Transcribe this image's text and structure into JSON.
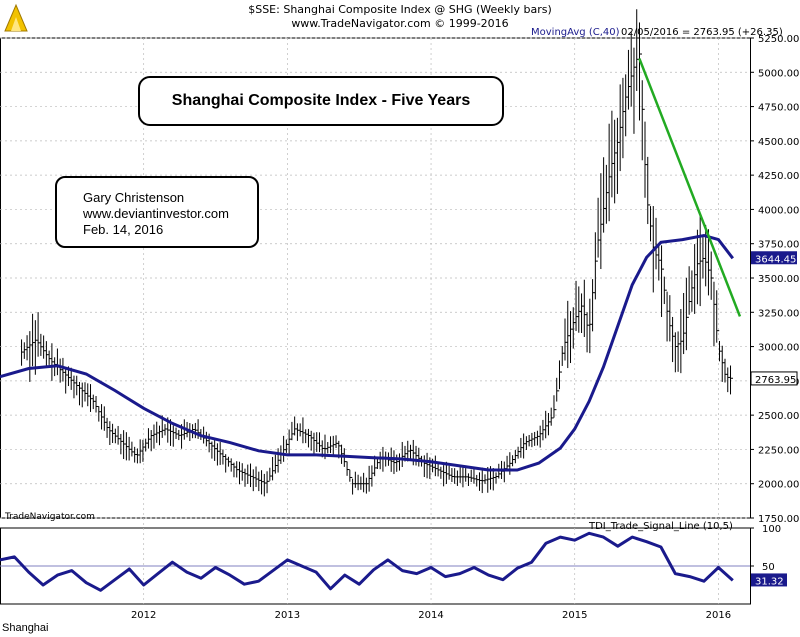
{
  "header": {
    "line1": "$SSE:  Shanghai Composite Index @ SHG  (Weekly bars)",
    "line2": "www.TradeNavigator.com © 1999-2016"
  },
  "overlay": {
    "ma_label": "MovingAvg (C,40)",
    "last_bar": "02/05/2016 = 2763.95 (+26.35)",
    "watermark": "TradeNavigator.com",
    "indicator_label": "TDI_Trade_Signal_Line (10,5)"
  },
  "annotations": {
    "title": "Shanghai Composite Index - Five Years",
    "author": "Gary Christenson",
    "website": "www.deviantinvestor.com",
    "date": "Feb. 14, 2016"
  },
  "footer": {
    "symbol": "Shanghai"
  },
  "colors": {
    "price_bars": "#000000",
    "moving_average": "#1a1a8c",
    "trendline": "#22aa22",
    "indicator": "#1a1a8c",
    "midline": "#8080c0",
    "ma_badge": "#1a1a8c"
  },
  "chart_data": [
    {
      "type": "ohlc",
      "title": "Shanghai Composite Index - Five Years",
      "ylim": [
        1750,
        5250
      ],
      "yticks": [
        "1750.00",
        "2000.00",
        "2250.00",
        "2500.00",
        "2750.00",
        "3000.00",
        "3250.00",
        "3500.00",
        "3750.00",
        "4000.00",
        "4250.00",
        "4500.00",
        "4750.00",
        "5000.00",
        "5250.00"
      ],
      "xticks": [
        "2012",
        "2013",
        "2014",
        "2015",
        "2016"
      ],
      "last_close_label": "2763.95",
      "ma_value_label": "3644.45",
      "close": {
        "x": [
          2011.15,
          2011.25,
          2011.35,
          2011.45,
          2011.55,
          2011.65,
          2011.75,
          2011.85,
          2011.95,
          2012.05,
          2012.15,
          2012.25,
          2012.35,
          2012.45,
          2012.55,
          2012.65,
          2012.75,
          2012.85,
          2012.95,
          2013.05,
          2013.15,
          2013.25,
          2013.35,
          2013.45,
          2013.55,
          2013.65,
          2013.75,
          2013.85,
          2013.95,
          2014.05,
          2014.15,
          2014.25,
          2014.35,
          2014.45,
          2014.55,
          2014.65,
          2014.75,
          2014.85,
          2014.92,
          2015.0,
          2015.05,
          2015.1,
          2015.15,
          2015.2,
          2015.25,
          2015.3,
          2015.35,
          2015.4,
          2015.45,
          2015.5,
          2015.55,
          2015.6,
          2015.65,
          2015.7,
          2015.75,
          2015.8,
          2015.85,
          2015.9,
          2015.95,
          2016.0,
          2016.05,
          2016.1
        ],
        "y": [
          2960,
          3050,
          2900,
          2800,
          2700,
          2600,
          2400,
          2300,
          2200,
          2350,
          2400,
          2350,
          2400,
          2300,
          2200,
          2100,
          2050,
          2000,
          2200,
          2400,
          2350,
          2250,
          2300,
          2000,
          2000,
          2200,
          2150,
          2250,
          2150,
          2100,
          2050,
          2050,
          2020,
          2050,
          2150,
          2300,
          2350,
          2500,
          3000,
          3200,
          3300,
          3100,
          3700,
          4000,
          4300,
          4500,
          4800,
          5000,
          5150,
          4100,
          3700,
          3600,
          3200,
          3000,
          3050,
          3350,
          3600,
          3650,
          3500,
          3000,
          2780,
          2764
        ]
      },
      "moving_average": {
        "name": "MovingAvg (C,40)",
        "x": [
          2011.0,
          2011.2,
          2011.4,
          2011.6,
          2011.8,
          2012.0,
          2012.2,
          2012.4,
          2012.6,
          2012.8,
          2013.0,
          2013.2,
          2013.4,
          2013.6,
          2013.8,
          2014.0,
          2014.2,
          2014.4,
          2014.6,
          2014.75,
          2014.9,
          2015.0,
          2015.1,
          2015.2,
          2015.3,
          2015.4,
          2015.5,
          2015.6,
          2015.75,
          2015.9,
          2016.0,
          2016.1
        ],
        "y": [
          2780,
          2840,
          2860,
          2800,
          2680,
          2550,
          2440,
          2350,
          2300,
          2240,
          2210,
          2210,
          2200,
          2190,
          2180,
          2160,
          2130,
          2100,
          2100,
          2150,
          2260,
          2400,
          2600,
          2850,
          3150,
          3450,
          3650,
          3760,
          3780,
          3810,
          3780,
          3644
        ]
      },
      "trendline": {
        "x": [
          2015.45,
          2016.15
        ],
        "y": [
          5100,
          3220
        ]
      }
    },
    {
      "type": "line",
      "title": "TDI_Trade_Signal_Line (10,5)",
      "ylim": [
        0,
        100
      ],
      "yticks": [
        "50",
        "100"
      ],
      "last_value_label": "31.32",
      "x": [
        2011.0,
        2011.1,
        2011.2,
        2011.3,
        2011.4,
        2011.5,
        2011.6,
        2011.7,
        2011.8,
        2011.9,
        2012.0,
        2012.1,
        2012.2,
        2012.3,
        2012.4,
        2012.5,
        2012.6,
        2012.7,
        2012.8,
        2012.9,
        2013.0,
        2013.1,
        2013.2,
        2013.3,
        2013.4,
        2013.5,
        2013.6,
        2013.7,
        2013.8,
        2013.9,
        2014.0,
        2014.1,
        2014.2,
        2014.3,
        2014.4,
        2014.5,
        2014.6,
        2014.7,
        2014.8,
        2014.9,
        2015.0,
        2015.1,
        2015.2,
        2015.3,
        2015.4,
        2015.5,
        2015.6,
        2015.7,
        2015.8,
        2015.9,
        2016.0,
        2016.1
      ],
      "y": [
        58,
        62,
        42,
        25,
        38,
        44,
        28,
        18,
        32,
        46,
        25,
        40,
        55,
        42,
        34,
        48,
        38,
        26,
        30,
        44,
        58,
        50,
        42,
        20,
        38,
        26,
        45,
        58,
        44,
        40,
        48,
        36,
        40,
        48,
        38,
        32,
        47,
        55,
        80,
        88,
        84,
        93,
        88,
        76,
        88,
        82,
        75,
        40,
        36,
        30,
        48,
        31
      ]
    }
  ]
}
